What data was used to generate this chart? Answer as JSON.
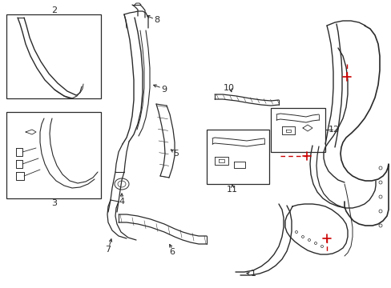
{
  "bg_color": "#ffffff",
  "line_color": "#2a2a2a",
  "red_color": "#cc0000",
  "label_color": "#000000",
  "figsize": [
    4.89,
    3.6
  ],
  "dpi": 100
}
